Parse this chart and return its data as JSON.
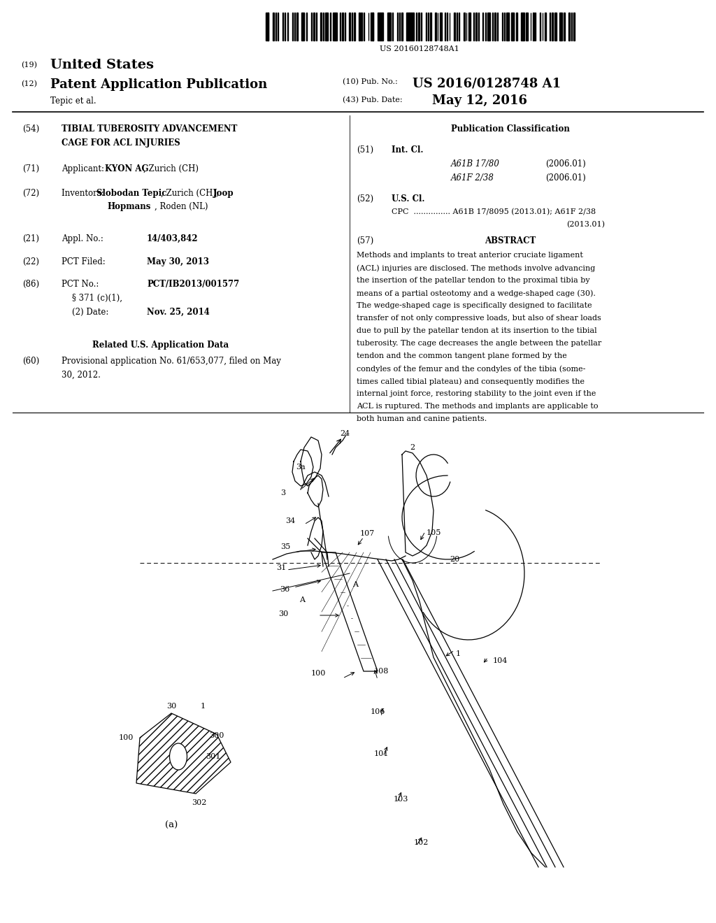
{
  "bg_color": "#ffffff",
  "barcode_text": "US 20160128748A1",
  "patent_number_label": "(19)",
  "patent_number_title": "United States",
  "pub_label": "(12)",
  "pub_title": "Patent Application Publication",
  "pub_number_label": "(10) Pub. No.:",
  "pub_number": "US 2016/0128748 A1",
  "author": "Tepic et al.",
  "pub_date_label": "(43) Pub. Date:",
  "pub_date": "May 12, 2016",
  "field54_label": "(54)",
  "field54_title1": "TIBIAL TUBEROSITY ADVANCEMENT",
  "field54_title2": "CAGE FOR ACL INJURIES",
  "field71_label": "(71)",
  "field71_applicant_pre": "Applicant: ",
  "field71_applicant_bold": "KYON AG",
  "field71_applicant_post": ", Zurich (CH)",
  "field72_label": "(72)",
  "field72_pre": "Inventors: ",
  "field72_bold1": "Slobodan Tepic",
  "field72_mid": ", Zurich (CH); ",
  "field72_bold2": "Joop",
  "field72_line2bold": "Hopmans",
  "field72_line2post": ", Roden (NL)",
  "field21_label": "(21)",
  "field21_key": "Appl. No.:",
  "field21_val": "14/403,842",
  "field22_label": "(22)",
  "field22_key": "PCT Filed:",
  "field22_val": "May 30, 2013",
  "field86_label": "(86)",
  "field86_key": "PCT No.:",
  "field86_val": "PCT/IB2013/001577",
  "field86b_key": "§ 371 (c)(1),",
  "field86b_key2": "(2) Date:",
  "field86b_val": "Nov. 25, 2014",
  "related_title": "Related U.S. Application Data",
  "field60_label": "(60)",
  "field60_line1": "Provisional application No. 61/653,077, filed on May",
  "field60_line2": "30, 2012.",
  "pub_class_title": "Publication Classification",
  "field51_label": "(51)",
  "field51_key": "Int. Cl.",
  "field51_val1": "A61B 17/80",
  "field51_date1": "(2006.01)",
  "field51_val2": "A61F 2/38",
  "field51_date2": "(2006.01)",
  "field52_label": "(52)",
  "field52_key": "U.S. Cl.",
  "field52_cpc": "CPC  ............... A61B 17/8095 (2013.01); A61F 2/38",
  "field52_cpc2": "(2013.01)",
  "field57_label": "(57)",
  "field57_title": "ABSTRACT",
  "abstract_lines": [
    "Methods and implants to treat anterior cruciate ligament",
    "(ACL) injuries are disclosed. The methods involve advancing",
    "the insertion of the patellar tendon to the proximal tibia by",
    "means of a partial osteotomy and a wedge-shaped cage (30).",
    "The wedge-shaped cage is specifically designed to facilitate",
    "transfer of not only compressive loads, but also of shear loads",
    "due to pull by the patellar tendon at its insertion to the tibial",
    "tuberosity. The cage decreases the angle between the patellar",
    "tendon and the common tangent plane formed by the",
    "condyles of the femur and the condyles of the tibia (some-",
    "times called tibial plateau) and consequently modifies the",
    "internal joint force, restoring stability to the joint even if the",
    "ACL is ruptured. The methods and implants are applicable to",
    "both human and canine patients."
  ],
  "fig_label": "(a)"
}
